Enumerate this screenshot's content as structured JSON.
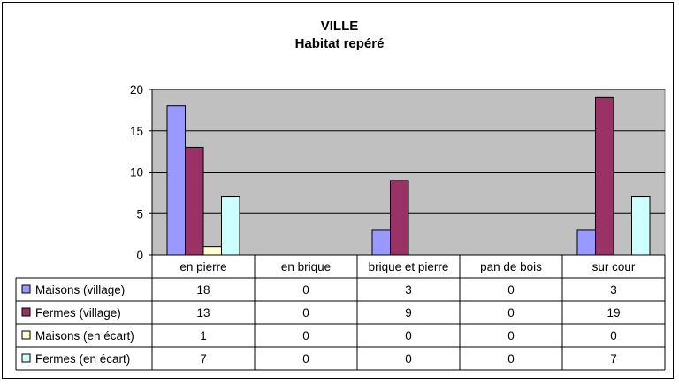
{
  "chart_data": {
    "type": "bar",
    "title": "VILLE",
    "subtitle": "Habitat repéré",
    "categories": [
      "en pierre",
      "en brique",
      "brique et pierre",
      "pan de bois",
      "sur cour"
    ],
    "ylim": [
      0,
      20
    ],
    "yticks": [
      "0",
      "5",
      "10",
      "15",
      "20"
    ],
    "grid": true,
    "legend": "data-table",
    "plot_background": "#c0c0c0",
    "series": [
      {
        "name": "Maisons (village)",
        "color": "#9999ff",
        "values": [
          18,
          0,
          3,
          0,
          3
        ]
      },
      {
        "name": "Fermes (village)",
        "color": "#993366",
        "values": [
          13,
          0,
          9,
          0,
          19
        ]
      },
      {
        "name": "Maisons (en écart)",
        "color": "#ffffcc",
        "values": [
          1,
          0,
          0,
          0,
          0
        ]
      },
      {
        "name": "Fermes (en écart)",
        "color": "#ccffff",
        "values": [
          7,
          0,
          0,
          0,
          7
        ]
      }
    ]
  }
}
